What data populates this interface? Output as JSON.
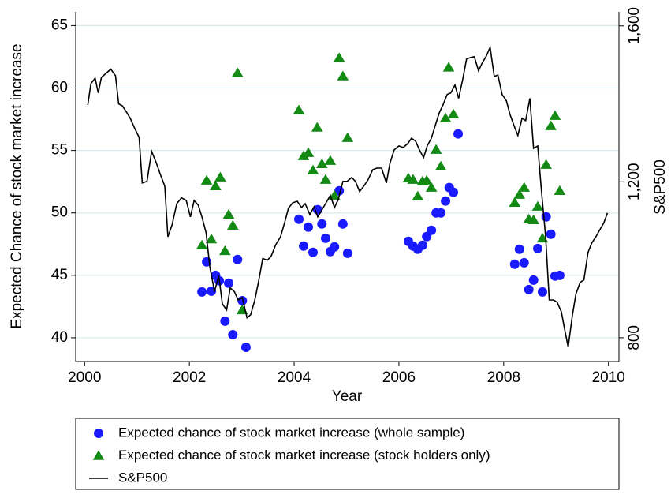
{
  "chart_data": {
    "type": "scatter",
    "xlabel": "Year",
    "ylabel": "Expected Chance of stock market increase",
    "y2label": "S&P500",
    "xlim": [
      1999.83,
      2010.2
    ],
    "xticks": [
      2000,
      2002,
      2004,
      2006,
      2008,
      2010
    ],
    "ylim": [
      38.1,
      66.1
    ],
    "yticks": [
      40,
      45,
      50,
      55,
      60,
      65
    ],
    "y2lim": [
      739,
      1636
    ],
    "y2ticks": [
      {
        "value": 800,
        "label": "800"
      },
      {
        "value": 1200,
        "label": "1,200"
      },
      {
        "value": 1600,
        "label": "1,600"
      }
    ],
    "grid": true,
    "legend": "bottom",
    "series": [
      {
        "name": "Expected chance of stock market increase (whole sample)",
        "color": "#1a1aff",
        "marker": "circle",
        "x": [
          2002.24,
          2002.33,
          2002.42,
          2002.5,
          2002.57,
          2002.68,
          2002.75,
          2002.83,
          2002.92,
          2003.01,
          2003.08,
          2004.09,
          2004.18,
          2004.27,
          2004.36,
          2004.45,
          2004.53,
          2004.6,
          2004.69,
          2004.77,
          2004.86,
          2004.93,
          2005.02,
          2006.18,
          2006.27,
          2006.36,
          2006.45,
          2006.53,
          2006.62,
          2006.71,
          2006.8,
          2006.89,
          2006.96,
          2007.04,
          2007.13,
          2008.21,
          2008.3,
          2008.39,
          2008.48,
          2008.57,
          2008.65,
          2008.74,
          2008.81,
          2008.9,
          2008.98,
          2009.07
        ],
        "values": [
          43.67,
          46.08,
          43.73,
          45.0,
          44.56,
          41.33,
          44.37,
          40.25,
          46.27,
          42.97,
          39.24,
          49.49,
          47.34,
          48.86,
          46.84,
          50.25,
          49.11,
          47.97,
          46.9,
          47.28,
          51.77,
          49.11,
          46.77,
          47.72,
          47.34,
          47.09,
          47.41,
          48.1,
          48.61,
          50.0,
          50.0,
          50.95,
          52.03,
          51.65,
          56.33,
          45.89,
          47.09,
          46.01,
          43.86,
          44.62,
          47.15,
          43.67,
          49.68,
          48.29,
          44.94,
          45.0
        ]
      },
      {
        "name": "Expected chance of stock market increase (stock holders only)",
        "color": "#138a13",
        "marker": "triangle",
        "x": [
          2002.24,
          2002.33,
          2002.42,
          2002.5,
          2002.59,
          2002.68,
          2002.75,
          2002.83,
          2002.92,
          2003.01,
          2004.09,
          2004.18,
          2004.27,
          2004.36,
          2004.44,
          2004.53,
          2004.6,
          2004.69,
          2004.77,
          2004.86,
          2004.93,
          2005.02,
          2006.18,
          2006.27,
          2006.36,
          2006.45,
          2006.53,
          2006.62,
          2006.71,
          2006.8,
          2006.89,
          2006.95,
          2007.04,
          2008.21,
          2008.3,
          2008.39,
          2008.48,
          2008.57,
          2008.65,
          2008.74,
          2008.81,
          2008.9,
          2008.98,
          2009.07
        ],
        "values": [
          47.41,
          52.6,
          47.9,
          52.15,
          52.85,
          46.96,
          49.87,
          48.99,
          61.2,
          42.22,
          58.23,
          54.56,
          54.81,
          53.42,
          56.84,
          53.92,
          52.66,
          54.18,
          51.39,
          62.41,
          60.95,
          56.01,
          52.78,
          52.66,
          51.33,
          52.53,
          52.6,
          52.03,
          55.06,
          53.73,
          57.59,
          61.65,
          57.91,
          50.82,
          51.46,
          52.03,
          49.49,
          49.43,
          50.51,
          47.97,
          53.86,
          56.96,
          57.78,
          51.77
        ]
      },
      {
        "name": "S&P500",
        "color": "#000000",
        "marker": "line",
        "axis": "y2",
        "x": [
          2000.06,
          2000.12,
          2000.2,
          2000.26,
          2000.32,
          2000.39,
          2000.5,
          2000.59,
          2000.65,
          2000.72,
          2000.8,
          2000.87,
          2000.95,
          2001.04,
          2001.1,
          2001.19,
          2001.28,
          2001.37,
          2001.44,
          2001.53,
          2001.59,
          2001.67,
          2001.76,
          2001.85,
          2001.94,
          2002.02,
          2002.09,
          2002.17,
          2002.24,
          2002.32,
          2002.39,
          2002.48,
          2002.56,
          2002.63,
          2002.71,
          2002.78,
          2002.86,
          2002.93,
          2003.01,
          2003.1,
          2003.17,
          2003.25,
          2003.32,
          2003.4,
          2003.49,
          2003.56,
          2003.65,
          2003.74,
          2003.82,
          2003.89,
          2003.97,
          2004.06,
          2004.14,
          2004.21,
          2004.3,
          2004.38,
          2004.45,
          2004.53,
          2004.6,
          2004.69,
          2004.77,
          2004.84,
          2004.93,
          2005.01,
          2005.1,
          2005.17,
          2005.25,
          2005.34,
          2005.41,
          2005.5,
          2005.58,
          2005.67,
          2005.76,
          2005.83,
          2005.91,
          2006.0,
          2006.08,
          2006.17,
          2006.24,
          2006.32,
          2006.39,
          2006.47,
          2006.54,
          2006.62,
          2006.69,
          2006.77,
          2006.84,
          2006.92,
          2006.99,
          2007.07,
          2007.14,
          2007.22,
          2007.29,
          2007.37,
          2007.44,
          2007.52,
          2007.59,
          2007.67,
          2007.74,
          2007.82,
          2007.89,
          2007.97,
          2008.05,
          2008.12,
          2008.2,
          2008.27,
          2008.35,
          2008.42,
          2008.5,
          2008.57,
          2008.65,
          2008.72,
          2008.8,
          2008.87,
          2008.95,
          2009.02,
          2009.1,
          2009.16,
          2009.23,
          2009.31,
          2009.38,
          2009.46,
          2009.53,
          2009.61,
          2009.68,
          2009.76,
          2009.83,
          2009.91,
          2009.98
        ],
        "values": [
          1397,
          1452,
          1466,
          1428,
          1468,
          1476,
          1489,
          1472,
          1400,
          1395,
          1379,
          1363,
          1339,
          1314,
          1197,
          1201,
          1278,
          1248,
          1221,
          1189,
          1059,
          1090,
          1144,
          1159,
          1152,
          1110,
          1152,
          1140,
          1110,
          1069,
          982,
          918,
          960,
          887,
          871,
          928,
          918,
          897,
          903,
          851,
          859,
          897,
          944,
          1003,
          999,
          1009,
          1039,
          1059,
          1096,
          1132,
          1146,
          1150,
          1134,
          1144,
          1116,
          1136,
          1110,
          1128,
          1144,
          1165,
          1134,
          1154,
          1201,
          1201,
          1211,
          1201,
          1175,
          1191,
          1205,
          1231,
          1235,
          1235,
          1197,
          1248,
          1282,
          1292,
          1288,
          1298,
          1312,
          1304,
          1282,
          1262,
          1292,
          1312,
          1343,
          1377,
          1397,
          1424,
          1428,
          1448,
          1414,
          1464,
          1515,
          1519,
          1521,
          1485,
          1505,
          1523,
          1545,
          1470,
          1474,
          1424,
          1408,
          1373,
          1343,
          1319,
          1363,
          1357,
          1414,
          1286,
          1292,
          1177,
          1059,
          897,
          897,
          891,
          867,
          824,
          776,
          857,
          913,
          942,
          948,
          1019,
          1043,
          1059,
          1076,
          1094,
          1120
        ]
      }
    ]
  }
}
